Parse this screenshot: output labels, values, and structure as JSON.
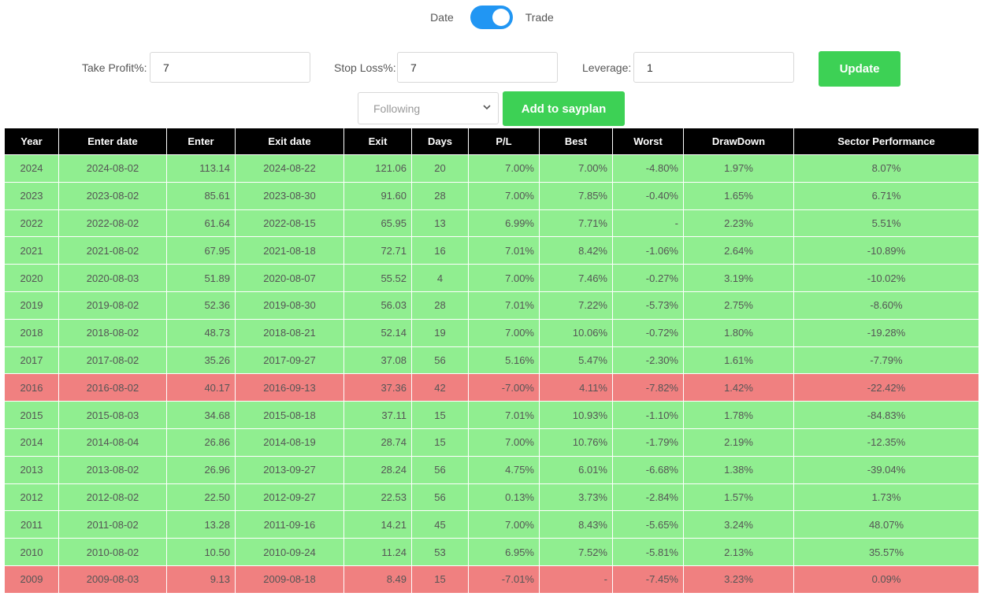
{
  "toggle": {
    "left_label": "Date",
    "right_label": "Trade",
    "on": true,
    "accent": "#2196f3"
  },
  "controls": {
    "take_profit_label": "Take Profit%:",
    "take_profit_value": "7",
    "stop_loss_label": "Stop Loss%:",
    "stop_loss_value": "7",
    "leverage_label": "Leverage:",
    "leverage_value": "1",
    "update_label": "Update",
    "select_value": "Following",
    "add_label": "Add to sayplan",
    "button_color": "#3dd155"
  },
  "table": {
    "headers": [
      "Year",
      "Enter date",
      "Enter",
      "Exit date",
      "Exit",
      "Days",
      "P/L",
      "Best",
      "Worst",
      "DrawDown",
      "Sector Performance"
    ],
    "colors": {
      "positive": "#90ee90",
      "negative": "#f08080",
      "header": "#000000"
    },
    "rows": [
      {
        "status": "pos",
        "cells": [
          "2024",
          "2024-08-02",
          "113.14",
          "2024-08-22",
          "121.06",
          "20",
          "7.00%",
          "7.00%",
          "-4.80%",
          "1.97%",
          "8.07%"
        ]
      },
      {
        "status": "pos",
        "cells": [
          "2023",
          "2023-08-02",
          "85.61",
          "2023-08-30",
          "91.60",
          "28",
          "7.00%",
          "7.85%",
          "-0.40%",
          "1.65%",
          "6.71%"
        ]
      },
      {
        "status": "pos",
        "cells": [
          "2022",
          "2022-08-02",
          "61.64",
          "2022-08-15",
          "65.95",
          "13",
          "6.99%",
          "7.71%",
          "-",
          "2.23%",
          "5.51%"
        ]
      },
      {
        "status": "pos",
        "cells": [
          "2021",
          "2021-08-02",
          "67.95",
          "2021-08-18",
          "72.71",
          "16",
          "7.01%",
          "8.42%",
          "-1.06%",
          "2.64%",
          "-10.89%"
        ]
      },
      {
        "status": "pos",
        "cells": [
          "2020",
          "2020-08-03",
          "51.89",
          "2020-08-07",
          "55.52",
          "4",
          "7.00%",
          "7.46%",
          "-0.27%",
          "3.19%",
          "-10.02%"
        ]
      },
      {
        "status": "pos",
        "cells": [
          "2019",
          "2019-08-02",
          "52.36",
          "2019-08-30",
          "56.03",
          "28",
          "7.01%",
          "7.22%",
          "-5.73%",
          "2.75%",
          "-8.60%"
        ]
      },
      {
        "status": "pos",
        "cells": [
          "2018",
          "2018-08-02",
          "48.73",
          "2018-08-21",
          "52.14",
          "19",
          "7.00%",
          "10.06%",
          "-0.72%",
          "1.80%",
          "-19.28%"
        ]
      },
      {
        "status": "pos",
        "cells": [
          "2017",
          "2017-08-02",
          "35.26",
          "2017-09-27",
          "37.08",
          "56",
          "5.16%",
          "5.47%",
          "-2.30%",
          "1.61%",
          "-7.79%"
        ]
      },
      {
        "status": "neg",
        "cells": [
          "2016",
          "2016-08-02",
          "40.17",
          "2016-09-13",
          "37.36",
          "42",
          "-7.00%",
          "4.11%",
          "-7.82%",
          "1.42%",
          "-22.42%"
        ]
      },
      {
        "status": "pos",
        "cells": [
          "2015",
          "2015-08-03",
          "34.68",
          "2015-08-18",
          "37.11",
          "15",
          "7.01%",
          "10.93%",
          "-1.10%",
          "1.78%",
          "-84.83%"
        ]
      },
      {
        "status": "pos",
        "cells": [
          "2014",
          "2014-08-04",
          "26.86",
          "2014-08-19",
          "28.74",
          "15",
          "7.00%",
          "10.76%",
          "-1.79%",
          "2.19%",
          "-12.35%"
        ]
      },
      {
        "status": "pos",
        "cells": [
          "2013",
          "2013-08-02",
          "26.96",
          "2013-09-27",
          "28.24",
          "56",
          "4.75%",
          "6.01%",
          "-6.68%",
          "1.38%",
          "-39.04%"
        ]
      },
      {
        "status": "pos",
        "cells": [
          "2012",
          "2012-08-02",
          "22.50",
          "2012-09-27",
          "22.53",
          "56",
          "0.13%",
          "3.73%",
          "-2.84%",
          "1.57%",
          "1.73%"
        ]
      },
      {
        "status": "pos",
        "cells": [
          "2011",
          "2011-08-02",
          "13.28",
          "2011-09-16",
          "14.21",
          "45",
          "7.00%",
          "8.43%",
          "-5.65%",
          "3.24%",
          "48.07%"
        ]
      },
      {
        "status": "pos",
        "cells": [
          "2010",
          "2010-08-02",
          "10.50",
          "2010-09-24",
          "11.24",
          "53",
          "6.95%",
          "7.52%",
          "-5.81%",
          "2.13%",
          "35.57%"
        ]
      },
      {
        "status": "neg",
        "cells": [
          "2009",
          "2009-08-03",
          "9.13",
          "2009-08-18",
          "8.49",
          "15",
          "-7.01%",
          "-",
          "-7.45%",
          "3.23%",
          "0.09%"
        ]
      }
    ]
  }
}
